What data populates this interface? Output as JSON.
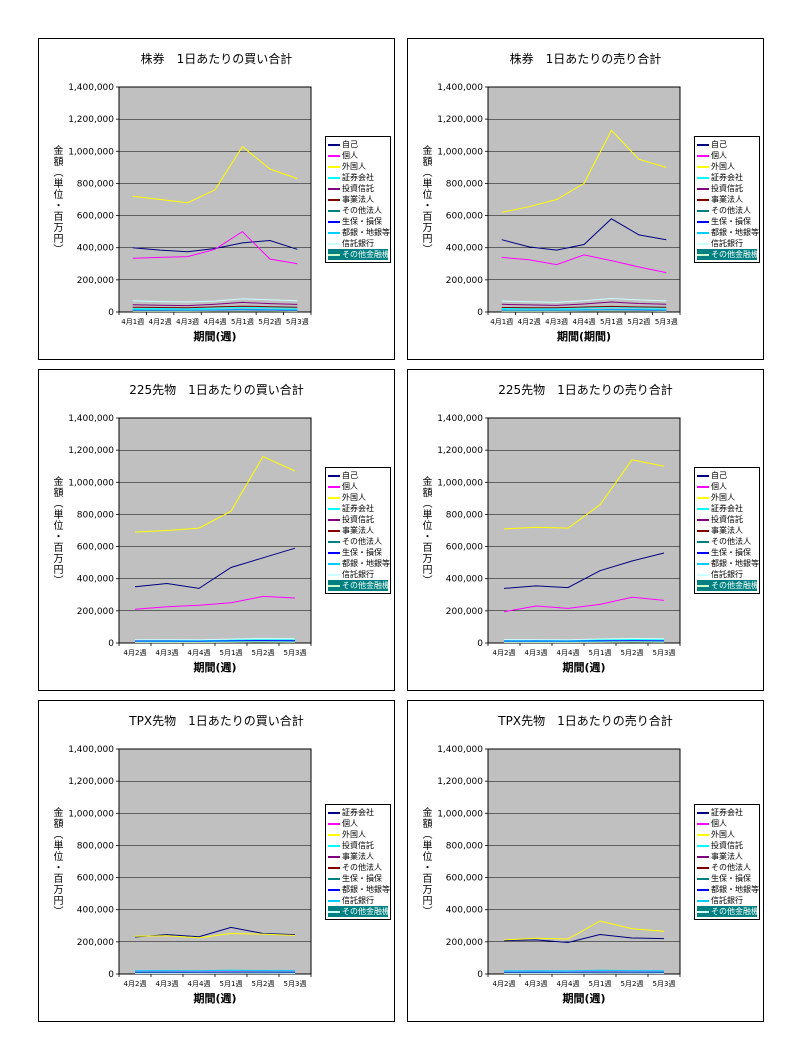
{
  "style": {
    "page_background": "#ffffff",
    "plot_background": "#c0c0c0",
    "grid_color": "#000000",
    "axis_color": "#000000",
    "legend_border": "#000000",
    "legend_last_row_background": "#008080"
  },
  "chart_data": [
    {
      "type": "line",
      "title": "株券　1日あたりの買い合計",
      "xlabel": "期間(週)",
      "ylabel": "金額（単位・百万円）",
      "ylim": [
        0,
        1400000
      ],
      "ytick_step": 200000,
      "legend_position": "right",
      "grid": true,
      "categories": [
        "4月1週",
        "4月2週",
        "4月3週",
        "4月4週",
        "5月1週",
        "5月2週",
        "5月3週"
      ],
      "series": [
        {
          "name": "自己",
          "color": "#000080",
          "values": [
            400000,
            385000,
            375000,
            395000,
            430000,
            445000,
            390000
          ]
        },
        {
          "name": "個人",
          "color": "#FF00FF",
          "values": [
            335000,
            340000,
            345000,
            390000,
            500000,
            330000,
            300000
          ]
        },
        {
          "name": "外国人",
          "color": "#FFFF00",
          "values": [
            720000,
            700000,
            680000,
            760000,
            1030000,
            890000,
            830000
          ]
        },
        {
          "name": "証券会社",
          "color": "#00FFFF",
          "values": [
            20000,
            22000,
            20000,
            24000,
            30000,
            26000,
            24000
          ]
        },
        {
          "name": "投資信託",
          "color": "#800080",
          "values": [
            45000,
            42000,
            40000,
            48000,
            60000,
            52000,
            47000
          ]
        },
        {
          "name": "事業法人",
          "color": "#800000",
          "values": [
            30000,
            28000,
            27000,
            32000,
            36000,
            33000,
            30000
          ]
        },
        {
          "name": "その他法人",
          "color": "#008080",
          "values": [
            8000,
            8000,
            7000,
            9000,
            10000,
            9000,
            8000
          ]
        },
        {
          "name": "生保・損保",
          "color": "#0000FF",
          "values": [
            12000,
            11000,
            10000,
            12000,
            14000,
            13000,
            12000
          ]
        },
        {
          "name": "都銀・地銀等",
          "color": "#00CCFF",
          "values": [
            15000,
            14000,
            13000,
            15000,
            18000,
            16000,
            15000
          ]
        },
        {
          "name": "信託銀行",
          "color": "#CCFFFF",
          "values": [
            70000,
            65000,
            62000,
            68000,
            82000,
            76000,
            70000
          ]
        },
        {
          "name": "その他金融機関",
          "color": "#CCFFCC",
          "values": [
            5000,
            5000,
            5000,
            6000,
            7000,
            6000,
            5000
          ]
        }
      ]
    },
    {
      "type": "line",
      "title": "株券　1日あたりの売り合計",
      "xlabel": "期間(期間)",
      "ylabel": "金額（単位・百万円）",
      "ylim": [
        0,
        1400000
      ],
      "ytick_step": 200000,
      "legend_position": "right",
      "grid": true,
      "categories": [
        "4月1週",
        "4月2週",
        "4月3週",
        "4月4週",
        "5月1週",
        "5月2週",
        "5月3週"
      ],
      "series": [
        {
          "name": "自己",
          "color": "#000080",
          "values": [
            450000,
            405000,
            385000,
            420000,
            580000,
            480000,
            450000
          ]
        },
        {
          "name": "個人",
          "color": "#FF00FF",
          "values": [
            340000,
            325000,
            295000,
            355000,
            320000,
            280000,
            245000
          ]
        },
        {
          "name": "外国人",
          "color": "#FFFF00",
          "values": [
            620000,
            655000,
            700000,
            800000,
            1130000,
            950000,
            900000
          ]
        },
        {
          "name": "証券会社",
          "color": "#00FFFF",
          "values": [
            22000,
            21000,
            20000,
            25000,
            31000,
            27000,
            24000
          ]
        },
        {
          "name": "投資信託",
          "color": "#800080",
          "values": [
            48000,
            44000,
            41000,
            50000,
            62000,
            53000,
            48000
          ]
        },
        {
          "name": "事業法人",
          "color": "#800000",
          "values": [
            28000,
            27000,
            26000,
            31000,
            35000,
            32000,
            29000
          ]
        },
        {
          "name": "その他法人",
          "color": "#008080",
          "values": [
            8000,
            7000,
            7000,
            9000,
            10000,
            9000,
            8000
          ]
        },
        {
          "name": "生保・損保",
          "color": "#0000FF",
          "values": [
            13000,
            12000,
            11000,
            13000,
            15000,
            13000,
            12000
          ]
        },
        {
          "name": "都銀・地銀等",
          "color": "#00CCFF",
          "values": [
            14000,
            13000,
            13000,
            15000,
            17000,
            16000,
            14000
          ]
        },
        {
          "name": "信託銀行",
          "color": "#CCFFFF",
          "values": [
            68000,
            64000,
            60000,
            70000,
            84000,
            75000,
            69000
          ]
        },
        {
          "name": "その他金融機関",
          "color": "#CCFFCC",
          "values": [
            5000,
            5000,
            5000,
            6000,
            7000,
            6000,
            5000
          ]
        }
      ]
    },
    {
      "type": "line",
      "title": "225先物　1日あたりの買い合計",
      "xlabel": "期間(週)",
      "ylabel": "金額（単位・百万円）",
      "ylim": [
        0,
        1400000
      ],
      "ytick_step": 200000,
      "legend_position": "right",
      "grid": true,
      "categories": [
        "4月2週",
        "4月3週",
        "4月4週",
        "5月1週",
        "5月2週",
        "5月3週"
      ],
      "series": [
        {
          "name": "自己",
          "color": "#000080",
          "values": [
            350000,
            370000,
            340000,
            470000,
            530000,
            590000
          ]
        },
        {
          "name": "個人",
          "color": "#FF00FF",
          "values": [
            210000,
            225000,
            235000,
            250000,
            290000,
            280000
          ]
        },
        {
          "name": "外国人",
          "color": "#FFFF00",
          "values": [
            690000,
            700000,
            715000,
            820000,
            1160000,
            1070000
          ]
        },
        {
          "name": "証券会社",
          "color": "#00FFFF",
          "values": [
            15000,
            16000,
            15000,
            18000,
            20000,
            19000
          ]
        },
        {
          "name": "投資信託",
          "color": "#800080",
          "values": [
            8000,
            8000,
            9000,
            10000,
            12000,
            11000
          ]
        },
        {
          "name": "事業法人",
          "color": "#800000",
          "values": [
            10000,
            10000,
            9000,
            11000,
            13000,
            12000
          ]
        },
        {
          "name": "その他法人",
          "color": "#008080",
          "values": [
            5000,
            5000,
            5000,
            6000,
            7000,
            6000
          ]
        },
        {
          "name": "生保・損保",
          "color": "#0000FF",
          "values": [
            12000,
            12000,
            11000,
            13000,
            15000,
            14000
          ]
        },
        {
          "name": "都銀・地銀等",
          "color": "#00CCFF",
          "values": [
            7000,
            7000,
            6000,
            8000,
            9000,
            8000
          ]
        },
        {
          "name": "信託銀行",
          "color": "#CCFFFF",
          "values": [
            20000,
            21000,
            20000,
            24000,
            28000,
            26000
          ]
        },
        {
          "name": "その他金融機関",
          "color": "#CCFFCC",
          "values": [
            4000,
            4000,
            4000,
            5000,
            6000,
            5000
          ]
        }
      ]
    },
    {
      "type": "line",
      "title": "225先物　1日あたりの売り合計",
      "xlabel": "期間(週)",
      "ylabel": "金額（単位・百万円）",
      "ylim": [
        0,
        1400000
      ],
      "ytick_step": 200000,
      "legend_position": "right",
      "grid": true,
      "categories": [
        "4月2週",
        "4月3週",
        "4月4週",
        "5月1週",
        "5月2週",
        "5月3週"
      ],
      "series": [
        {
          "name": "自己",
          "color": "#000080",
          "values": [
            340000,
            355000,
            345000,
            450000,
            510000,
            560000
          ]
        },
        {
          "name": "個人",
          "color": "#FF00FF",
          "values": [
            195000,
            230000,
            215000,
            240000,
            285000,
            265000
          ]
        },
        {
          "name": "外国人",
          "color": "#FFFF00",
          "values": [
            710000,
            720000,
            715000,
            860000,
            1140000,
            1100000
          ]
        },
        {
          "name": "証券会社",
          "color": "#00FFFF",
          "values": [
            16000,
            16000,
            15000,
            19000,
            21000,
            20000
          ]
        },
        {
          "name": "投資信託",
          "color": "#800080",
          "values": [
            9000,
            9000,
            9000,
            11000,
            13000,
            12000
          ]
        },
        {
          "name": "事業法人",
          "color": "#800000",
          "values": [
            10000,
            9000,
            9000,
            11000,
            12000,
            11000
          ]
        },
        {
          "name": "その他法人",
          "color": "#008080",
          "values": [
            5000,
            5000,
            5000,
            6000,
            7000,
            6000
          ]
        },
        {
          "name": "生保・損保",
          "color": "#0000FF",
          "values": [
            11000,
            12000,
            11000,
            13000,
            14000,
            13000
          ]
        },
        {
          "name": "都銀・地銀等",
          "color": "#00CCFF",
          "values": [
            7000,
            7000,
            7000,
            8000,
            9000,
            8000
          ]
        },
        {
          "name": "信託銀行",
          "color": "#CCFFFF",
          "values": [
            21000,
            21000,
            20000,
            25000,
            28000,
            27000
          ]
        },
        {
          "name": "その他金融機関",
          "color": "#CCFFCC",
          "values": [
            4000,
            4000,
            4000,
            5000,
            6000,
            5000
          ]
        }
      ]
    },
    {
      "type": "line",
      "title": "TPX先物　1日あたりの買い合計",
      "xlabel": "期間(週)",
      "ylabel": "金額（単位・百万円）",
      "ylim": [
        0,
        1400000
      ],
      "ytick_step": 200000,
      "legend_position": "right",
      "grid": true,
      "categories": [
        "4月2週",
        "4月3週",
        "4月4週",
        "5月1週",
        "5月2週",
        "5月3週"
      ],
      "series": [
        {
          "name": "証券会社",
          "color": "#000080",
          "values": [
            230000,
            245000,
            232000,
            290000,
            252000,
            245000
          ]
        },
        {
          "name": "個人",
          "color": "#FF00FF",
          "values": [
            15000,
            16000,
            15000,
            18000,
            17000,
            16000
          ]
        },
        {
          "name": "外国人",
          "color": "#FFFF00",
          "values": [
            235000,
            238000,
            226000,
            252000,
            248000,
            240000
          ]
        },
        {
          "name": "投資信託",
          "color": "#00FFFF",
          "values": [
            18000,
            19000,
            18000,
            22000,
            20000,
            19000
          ]
        },
        {
          "name": "事業法人",
          "color": "#800080",
          "values": [
            8000,
            8000,
            8000,
            9000,
            9000,
            8000
          ]
        },
        {
          "name": "その他法人",
          "color": "#800000",
          "values": [
            5000,
            5000,
            5000,
            6000,
            6000,
            5000
          ]
        },
        {
          "name": "生保・損保",
          "color": "#008080",
          "values": [
            10000,
            10000,
            9000,
            11000,
            11000,
            10000
          ]
        },
        {
          "name": "都銀・地銀等",
          "color": "#0000FF",
          "values": [
            6000,
            6000,
            6000,
            7000,
            7000,
            6000
          ]
        },
        {
          "name": "信託銀行",
          "color": "#00CCFF",
          "values": [
            20000,
            21000,
            20000,
            23000,
            22000,
            21000
          ]
        },
        {
          "name": "その他金融機関",
          "color": "#CCFFFF",
          "values": [
            4000,
            4000,
            4000,
            5000,
            5000,
            4000
          ]
        }
      ]
    },
    {
      "type": "line",
      "title": "TPX先物　1日あたりの売り合計",
      "xlabel": "期間(週)",
      "ylabel": "金額（単位・百万円）",
      "ylim": [
        0,
        1400000
      ],
      "ytick_step": 200000,
      "legend_position": "right",
      "grid": true,
      "categories": [
        "4月2週",
        "4月3週",
        "4月4週",
        "5月1週",
        "5月2週",
        "5月3週"
      ],
      "series": [
        {
          "name": "証券会社",
          "color": "#000080",
          "values": [
            208000,
            212000,
            196000,
            246000,
            224000,
            220000
          ]
        },
        {
          "name": "個人",
          "color": "#FF00FF",
          "values": [
            14000,
            15000,
            14000,
            17000,
            16000,
            15000
          ]
        },
        {
          "name": "外国人",
          "color": "#FFFF00",
          "values": [
            212000,
            222000,
            218000,
            330000,
            282000,
            266000
          ]
        },
        {
          "name": "投資信託",
          "color": "#00FFFF",
          "values": [
            17000,
            18000,
            17000,
            21000,
            19000,
            18000
          ]
        },
        {
          "name": "事業法人",
          "color": "#800080",
          "values": [
            8000,
            8000,
            7000,
            9000,
            9000,
            8000
          ]
        },
        {
          "name": "その他法人",
          "color": "#800000",
          "values": [
            5000,
            5000,
            5000,
            6000,
            6000,
            5000
          ]
        },
        {
          "name": "生保・損保",
          "color": "#008080",
          "values": [
            9000,
            10000,
            9000,
            11000,
            10000,
            10000
          ]
        },
        {
          "name": "都銀・地銀等",
          "color": "#0000FF",
          "values": [
            6000,
            6000,
            6000,
            7000,
            7000,
            6000
          ]
        },
        {
          "name": "信託銀行",
          "color": "#00CCFF",
          "values": [
            19000,
            20000,
            19000,
            23000,
            21000,
            20000
          ]
        },
        {
          "name": "その他金融機関",
          "color": "#CCFFFF",
          "values": [
            4000,
            4000,
            4000,
            5000,
            5000,
            4000
          ]
        }
      ]
    }
  ]
}
